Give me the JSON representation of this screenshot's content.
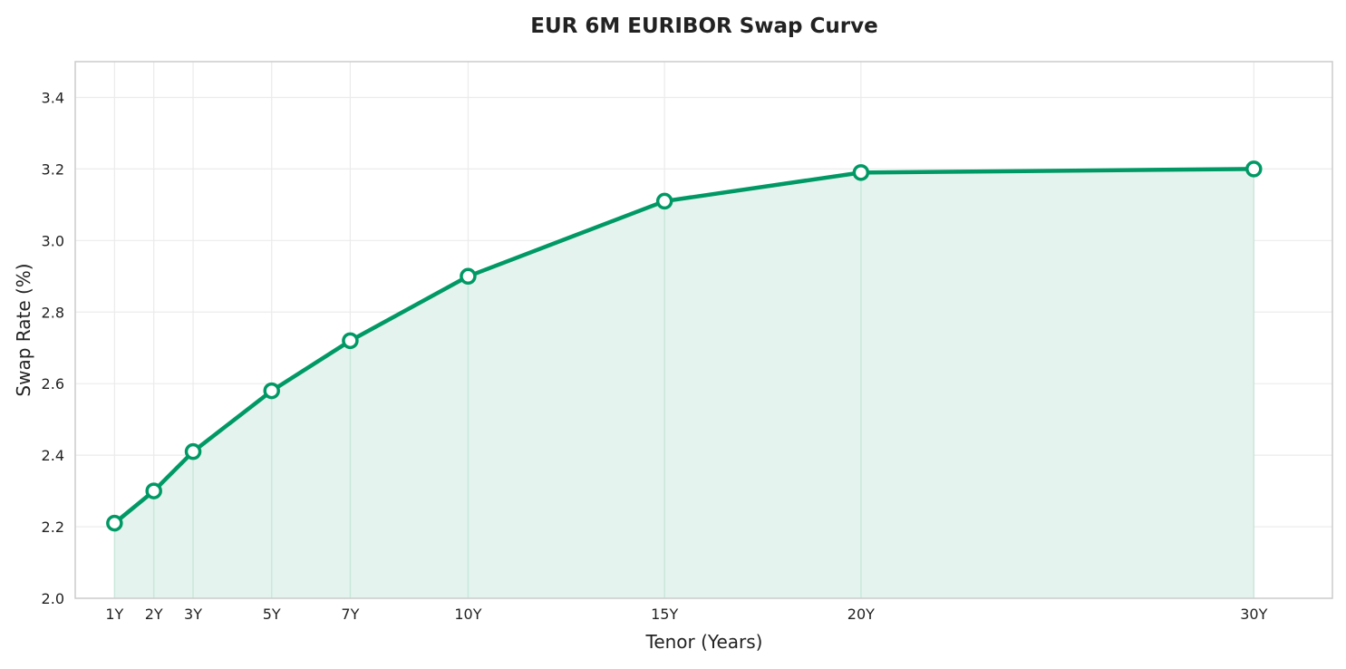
{
  "chart_data": {
    "type": "area",
    "title": "EUR 6M EURIBOR Swap Curve",
    "xlabel": "Tenor (Years)",
    "ylabel": "Swap Rate (%)",
    "x": [
      1,
      2,
      3,
      5,
      7,
      10,
      15,
      20,
      30
    ],
    "tick_labels": [
      "1Y",
      "2Y",
      "3Y",
      "5Y",
      "7Y",
      "10Y",
      "15Y",
      "20Y",
      "30Y"
    ],
    "values": [
      2.21,
      2.3,
      2.41,
      2.58,
      2.72,
      2.9,
      3.11,
      3.19,
      3.2
    ],
    "xlim": [
      0,
      32
    ],
    "ylim": [
      2.0,
      3.5
    ],
    "yticks": [
      "2.0",
      "2.2",
      "2.4",
      "2.6",
      "2.8",
      "3.0",
      "3.2",
      "3.4"
    ],
    "grid": true,
    "colors": {
      "line": "#009966",
      "fill": "#e4f3ed"
    }
  }
}
